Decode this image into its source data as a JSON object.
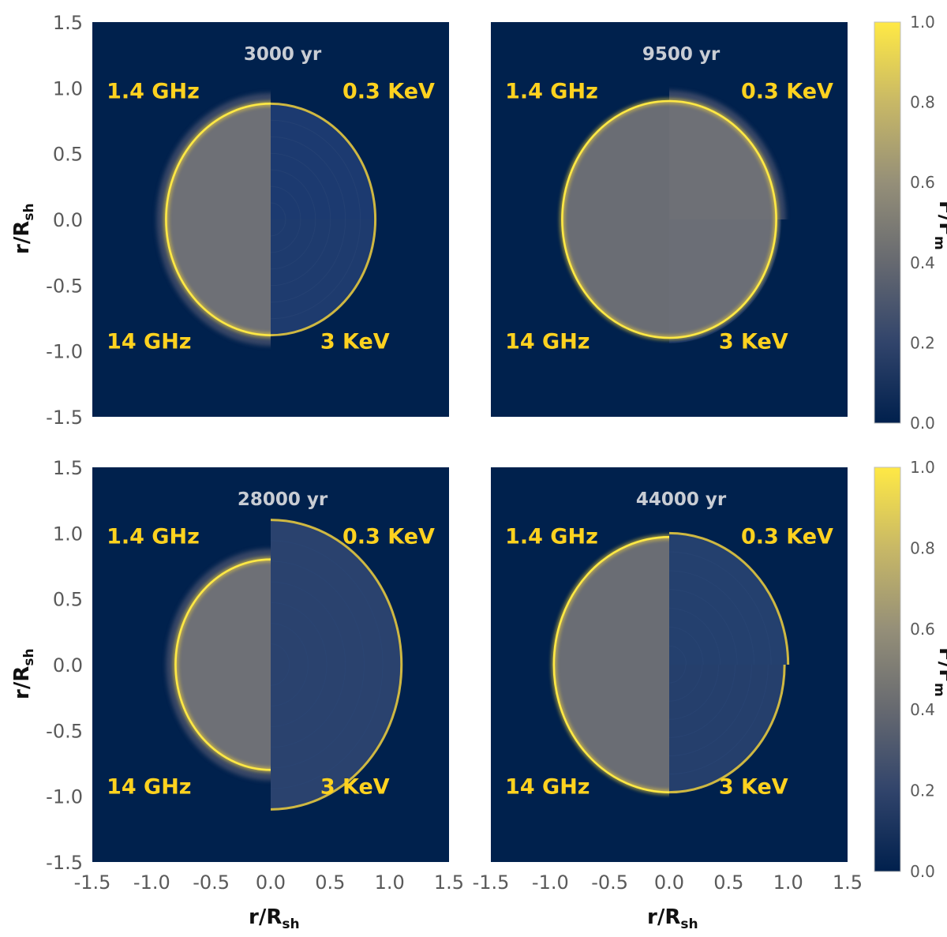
{
  "chart_data": {
    "type": "heatmap",
    "description_labels": {
      "xlabel": "r/R",
      "xlabel_sub": "sh",
      "ylabel": "r/R",
      "ylabel_sub": "sh",
      "colorbar_label": "F/F",
      "colorbar_label_sub": "m"
    },
    "xlim": [
      -1.5,
      1.5
    ],
    "ylim": [
      -1.5,
      1.5
    ],
    "xticks": [
      "-1.5",
      "-1.0",
      "-0.5",
      "0.0",
      "0.5",
      "1.0",
      "1.5"
    ],
    "yticks": [
      "1.5",
      "1.0",
      "0.5",
      "0.0",
      "-0.5",
      "-1.0",
      "-1.5"
    ],
    "colorbar_ticks": [
      "1.0",
      "0.8",
      "0.6",
      "0.4",
      "0.2",
      "0.0"
    ],
    "colorbar_range": [
      0.0,
      1.0
    ],
    "colormap": [
      "#00204d",
      "#31446b",
      "#666970",
      "#958f78",
      "#c8b866",
      "#ffe945"
    ],
    "band_labels": {
      "top_left": "1.4 GHz",
      "top_right": "0.3 KeV",
      "bottom_left": "14 GHz",
      "bottom_right": "3 KeV"
    },
    "panels": [
      {
        "age": "3000 yr",
        "radius_1_4GHz": 0.88,
        "radius_0_3KeV": 0.88,
        "radius_14GHz": 0.88,
        "radius_3KeV": 0.88,
        "halo_1_4GHz": 0.08,
        "halo_14GHz": 0.08
      },
      {
        "age": "9500 yr",
        "radius_1_4GHz": 0.9,
        "radius_0_3KeV": 0.9,
        "radius_14GHz": 0.9,
        "radius_3KeV": 0.9,
        "halo_1_4GHz": 0.0,
        "halo_14GHz": 0.0
      },
      {
        "age": "28000 yr",
        "radius_1_4GHz": 0.8,
        "radius_0_3KeV": 1.1,
        "radius_14GHz": 0.8,
        "radius_3KeV": 1.1,
        "halo_1_4GHz": 0.08,
        "halo_14GHz": 0.08
      },
      {
        "age": "44000 yr",
        "radius_1_4GHz": 0.97,
        "radius_0_3KeV": 1.0,
        "radius_14GHz": 0.97,
        "radius_3KeV": 0.97,
        "halo_1_4GHz": 0.0,
        "halo_14GHz": 0.0
      }
    ]
  }
}
